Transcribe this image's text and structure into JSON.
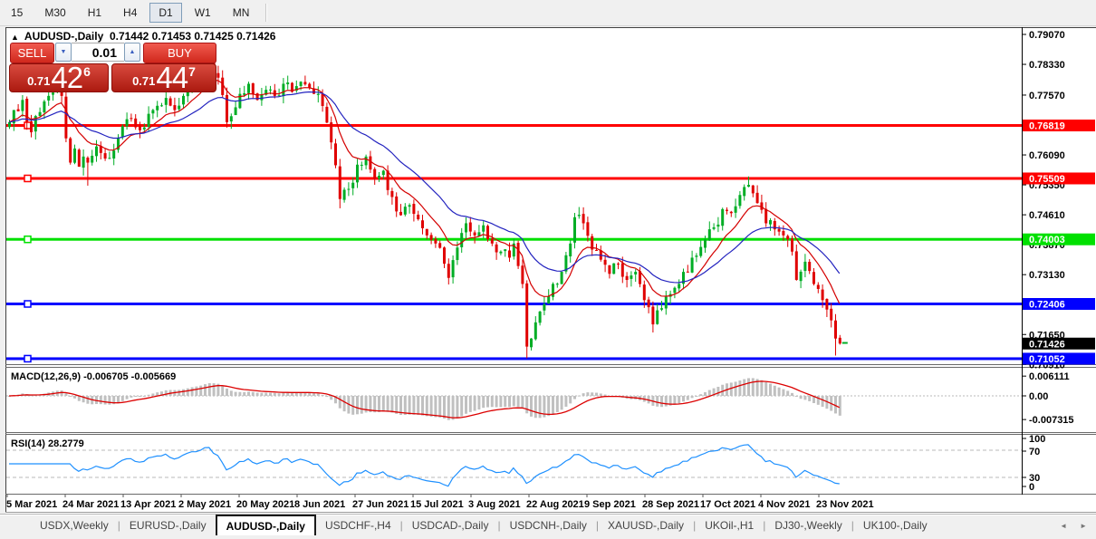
{
  "toolbar": {
    "timeframes": [
      {
        "label": "15"
      },
      {
        "label": "M30"
      },
      {
        "label": "H1"
      },
      {
        "label": "H4"
      },
      {
        "label": "D1"
      },
      {
        "label": "W1"
      },
      {
        "label": "MN"
      }
    ],
    "active": "D1"
  },
  "quote_panel": {
    "collapse_icon": "▲",
    "title": "AUDUSD-,Daily",
    "ohlc": "0.71442 0.71453 0.71425 0.71426",
    "sell_label": "SELL",
    "buy_label": "BUY",
    "volume": "0.01",
    "spinner_down_icon": "▼",
    "spinner_up_icon": "▲",
    "bid": {
      "prefix": "0.71",
      "big": "42",
      "sup": "6"
    },
    "ask": {
      "prefix": "0.71",
      "big": "44",
      "sup": "7"
    }
  },
  "chart_data": {
    "type": "candlestick",
    "symbol": "AUDUSD-",
    "timeframe": "Daily",
    "colors": {
      "up": "#00AD25",
      "down": "#E00000",
      "ma_fast": "#D40000",
      "ma_slow": "#2323BF",
      "hist": "#C0C0C0",
      "macd_signal": "#DC0000",
      "rsi": "#1E90FF"
    },
    "price_axis_ticks": [
      "0.79070",
      "0.78330",
      "0.77570",
      "0.76090",
      "0.75350",
      "0.74610",
      "0.73870",
      "0.73130",
      "0.71650",
      "0.70910"
    ],
    "hlines": [
      {
        "label": "0.76819",
        "value": 0.76819,
        "color": "#FF0000"
      },
      {
        "label": "0.75509",
        "value": 0.75509,
        "color": "#FF0000"
      },
      {
        "label": "0.74003",
        "value": 0.74003,
        "color": "#00E000"
      },
      {
        "label": "0.72406",
        "value": 0.72406,
        "color": "#0000FF"
      },
      {
        "label": "0.71052",
        "value": 0.71052,
        "color": "#0000FF"
      }
    ],
    "current_price": {
      "label": "0.71426",
      "value": 0.71426,
      "bg": "#000000"
    },
    "macd": {
      "title": "MACD(12,26,9)",
      "values": "-0.006705 -0.005669",
      "fast": 12,
      "slow": 26,
      "signal": 9,
      "ticks": [
        {
          "label": "0.006111",
          "value": 0.006111
        },
        {
          "label": "0.00",
          "value": 0
        },
        {
          "label": "-0.007315",
          "value": -0.007315
        }
      ]
    },
    "rsi": {
      "title": "RSI(14)",
      "value": "28.2779",
      "period": 14,
      "levels": [
        70,
        30
      ],
      "ticks": [
        "100",
        "70",
        "30",
        "0"
      ]
    },
    "dates": [
      "5 Mar 2021",
      "24 Mar 2021",
      "13 Apr 2021",
      "2 May 2021",
      "20 May 2021",
      "8 Jun 2021",
      "27 Jun 2021",
      "15 Jul 2021",
      "3 Aug 2021",
      "22 Aug 2021",
      "9 Sep 2021",
      "28 Sep 2021",
      "17 Oct 2021",
      "4 Nov 2021",
      "23 Nov 2021"
    ],
    "close_anchors": [
      [
        0,
        0.769
      ],
      [
        1,
        0.772
      ],
      [
        3,
        0.7745
      ],
      [
        5,
        0.7665
      ],
      [
        7,
        0.7715
      ],
      [
        9,
        0.7755
      ],
      [
        11,
        0.777
      ],
      [
        12,
        0.7755
      ],
      [
        13,
        0.765
      ],
      [
        14,
        0.759
      ],
      [
        15,
        0.7625
      ],
      [
        16,
        0.758
      ],
      [
        17,
        0.7605
      ],
      [
        18,
        0.759
      ],
      [
        20,
        0.763
      ],
      [
        22,
        0.76
      ],
      [
        24,
        0.762
      ],
      [
        26,
        0.768
      ],
      [
        28,
        0.77
      ],
      [
        30,
        0.767
      ],
      [
        33,
        0.772
      ],
      [
        36,
        0.775
      ],
      [
        38,
        0.772
      ],
      [
        40,
        0.7755
      ],
      [
        42,
        0.779
      ],
      [
        44,
        0.7805
      ],
      [
        46,
        0.784
      ],
      [
        48,
        0.78
      ],
      [
        50,
        0.769
      ],
      [
        53,
        0.776
      ],
      [
        55,
        0.7785
      ],
      [
        57,
        0.7745
      ],
      [
        59,
        0.777
      ],
      [
        61,
        0.7755
      ],
      [
        63,
        0.7785
      ],
      [
        65,
        0.7765
      ],
      [
        67,
        0.779
      ],
      [
        70,
        0.776
      ],
      [
        72,
        0.773
      ],
      [
        74,
        0.764
      ],
      [
        76,
        0.75
      ],
      [
        78,
        0.7525
      ],
      [
        80,
        0.7585
      ],
      [
        82,
        0.7605
      ],
      [
        84,
        0.755
      ],
      [
        86,
        0.757
      ],
      [
        88,
        0.7505
      ],
      [
        90,
        0.746
      ],
      [
        92,
        0.7485
      ],
      [
        94,
        0.745
      ],
      [
        96,
        0.741
      ],
      [
        98,
        0.739
      ],
      [
        100,
        0.734
      ],
      [
        101,
        0.7305
      ],
      [
        103,
        0.738
      ],
      [
        105,
        0.744
      ],
      [
        107,
        0.741
      ],
      [
        109,
        0.7435
      ],
      [
        111,
        0.739
      ],
      [
        113,
        0.737
      ],
      [
        115,
        0.7355
      ],
      [
        116,
        0.739
      ],
      [
        118,
        0.729
      ],
      [
        119,
        0.7135
      ],
      [
        121,
        0.7195
      ],
      [
        123,
        0.724
      ],
      [
        125,
        0.729
      ],
      [
        127,
        0.732
      ],
      [
        129,
        0.739
      ],
      [
        130,
        0.7455
      ],
      [
        132,
        0.744
      ],
      [
        134,
        0.7375
      ],
      [
        136,
        0.735
      ],
      [
        138,
        0.7315
      ],
      [
        140,
        0.734
      ],
      [
        142,
        0.73
      ],
      [
        144,
        0.732
      ],
      [
        146,
        0.725
      ],
      [
        148,
        0.719
      ],
      [
        150,
        0.723
      ],
      [
        152,
        0.7265
      ],
      [
        154,
        0.729
      ],
      [
        156,
        0.732
      ],
      [
        158,
        0.736
      ],
      [
        160,
        0.74
      ],
      [
        162,
        0.743
      ],
      [
        164,
        0.7475
      ],
      [
        166,
        0.7465
      ],
      [
        168,
        0.751
      ],
      [
        170,
        0.7535
      ],
      [
        172,
        0.749
      ],
      [
        174,
        0.744
      ],
      [
        176,
        0.7425
      ],
      [
        178,
        0.741
      ],
      [
        180,
        0.737
      ],
      [
        181,
        0.73
      ],
      [
        183,
        0.7345
      ],
      [
        185,
        0.729
      ],
      [
        187,
        0.725
      ],
      [
        189,
        0.72
      ],
      [
        190,
        0.7155
      ],
      [
        191,
        0.71426
      ]
    ],
    "extremes": [
      {
        "day": 18,
        "low": 0.7533
      },
      {
        "day": 46,
        "high": 0.7862
      },
      {
        "day": 76,
        "low": 0.7477
      },
      {
        "day": 101,
        "low": 0.7289
      },
      {
        "day": 119,
        "low": 0.7106
      },
      {
        "day": 148,
        "low": 0.717
      },
      {
        "day": 170,
        "high": 0.7556
      },
      {
        "day": 190,
        "low": 0.7113
      }
    ]
  },
  "tabbar": {
    "tabs": [
      {
        "label": "USDX,Weekly"
      },
      {
        "label": "EURUSD-,Daily"
      },
      {
        "label": "AUDUSD-,Daily"
      },
      {
        "label": "USDCHF-,H4"
      },
      {
        "label": "USDCAD-,Daily"
      },
      {
        "label": "USDCNH-,Daily"
      },
      {
        "label": "XAUUSD-,Daily"
      },
      {
        "label": "UKOil-,H1"
      },
      {
        "label": "DJ30-,Weekly"
      },
      {
        "label": "UK100-,Daily"
      }
    ],
    "active": "AUDUSD-,Daily",
    "scroll_left_icon": "◄",
    "scroll_right_icon": "►"
  }
}
